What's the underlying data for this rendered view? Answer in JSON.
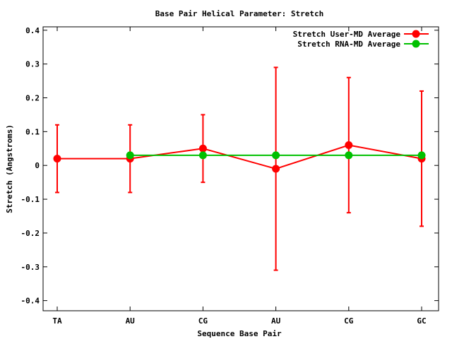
{
  "chart_data": {
    "type": "line",
    "title": "Base Pair Helical Parameter: Stretch",
    "xlabel": "Sequence Base Pair",
    "ylabel": "Stretch (Angstroms)",
    "categories": [
      "TA",
      "AU",
      "CG",
      "AU",
      "CG",
      "GC"
    ],
    "ylim": [
      -0.43,
      0.41
    ],
    "yticks": [
      -0.4,
      -0.3,
      -0.2,
      -0.1,
      0,
      0.1,
      0.2,
      0.3,
      0.4
    ],
    "ytick_labels": [
      "-0.4",
      "-0.3",
      "-0.2",
      "-0.1",
      "0",
      "0.1",
      "0.2",
      "0.3",
      "0.4"
    ],
    "grid": false,
    "legend_position": "top-right",
    "series": [
      {
        "name": "Stretch User-MD Average",
        "color": "#ff0000",
        "x": [
          0,
          1,
          2,
          3,
          4,
          5
        ],
        "values": [
          0.02,
          0.02,
          0.05,
          -0.01,
          0.06,
          0.02
        ],
        "error_low": [
          -0.08,
          -0.08,
          -0.05,
          -0.31,
          -0.14,
          -0.18
        ],
        "error_high": [
          0.12,
          0.12,
          0.15,
          0.29,
          0.26,
          0.22
        ]
      },
      {
        "name": "Stretch RNA-MD Average",
        "color": "#00c000",
        "x": [
          1,
          2,
          3,
          4,
          5
        ],
        "values": [
          0.03,
          0.03,
          0.03,
          0.03,
          0.03
        ]
      }
    ]
  }
}
